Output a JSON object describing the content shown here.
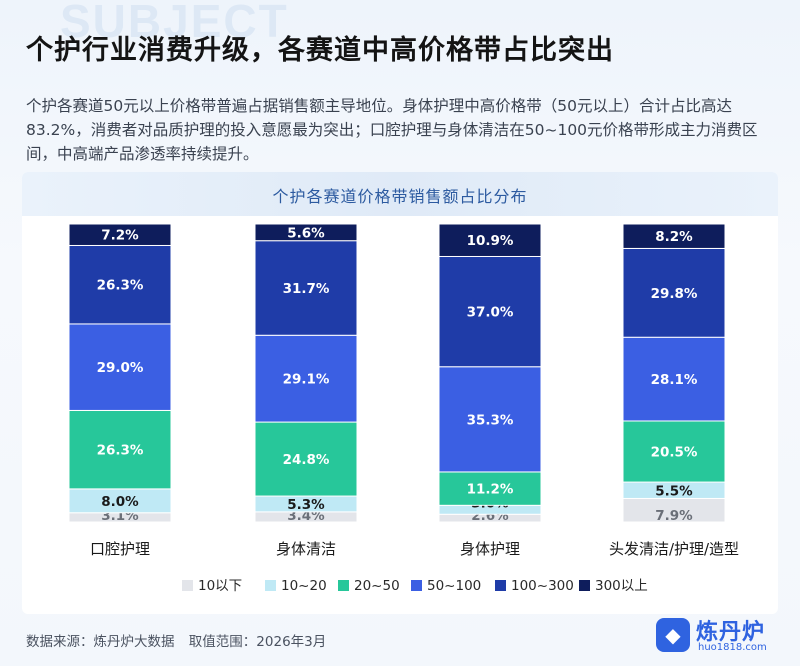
{
  "title": "个护行业消费升级，各赛道中高价格带占比突出",
  "description": "个护各赛道50元以上价格带普遍占据销售额主导地位。身体护理中高价格带（50元以上）合计占比高达83.2%，消费者对品质护理的投入意愿最为突出；口腔护理与身体清洁在50~100元价格带形成主力消费区间，中高端产品渗透率持续提升。",
  "watermark": "SUBJECT",
  "footer": {
    "source": "数据来源：炼丹炉大数据",
    "range": "取值范围：2026年3月"
  },
  "logo": {
    "name": "炼丹炉",
    "url": "huo1818.com"
  },
  "chart_data": {
    "type": "bar",
    "stacked": true,
    "title": "个护各赛道价格带销售额占比分布",
    "categories": [
      "口腔护理",
      "身体清洁",
      "身体护理",
      "头发清洁/护理/造型"
    ],
    "series": [
      {
        "name": "10以下",
        "color": "#e3e5ea",
        "values": [
          3.1,
          3.4,
          2.6,
          7.9
        ]
      },
      {
        "name": "10~20",
        "color": "#bfe9f5",
        "values": [
          8.0,
          5.3,
          3.0,
          5.5
        ]
      },
      {
        "name": "20~50",
        "color": "#27c79a",
        "values": [
          26.3,
          24.8,
          11.2,
          20.5
        ]
      },
      {
        "name": "50~100",
        "color": "#3b5fe3",
        "values": [
          29.0,
          29.1,
          35.3,
          28.1
        ]
      },
      {
        "name": "100~300",
        "color": "#1f3ca8",
        "values": [
          26.3,
          31.7,
          37.0,
          29.8
        ]
      },
      {
        "name": "300以上",
        "color": "#0e1d5c",
        "values": [
          7.2,
          5.6,
          10.9,
          8.2
        ]
      }
    ],
    "value_labels": [
      [
        "3.1%",
        "3.4%",
        "2.6%",
        "7.9%"
      ],
      [
        "8.0%",
        "5.3%",
        "3.0%",
        "5.5%"
      ],
      [
        "26.3%",
        "24.8%",
        "11.2%",
        "20.5%"
      ],
      [
        "29.0%",
        "29.1%",
        "35.3%",
        "28.1%"
      ],
      [
        "26.3%",
        "31.7%",
        "37.0%",
        "29.8%"
      ],
      [
        "7.2%",
        "5.6%",
        "10.9%",
        "8.2%"
      ]
    ],
    "ylim": [
      0,
      100
    ],
    "legend_position": "bottom",
    "grid": false
  }
}
